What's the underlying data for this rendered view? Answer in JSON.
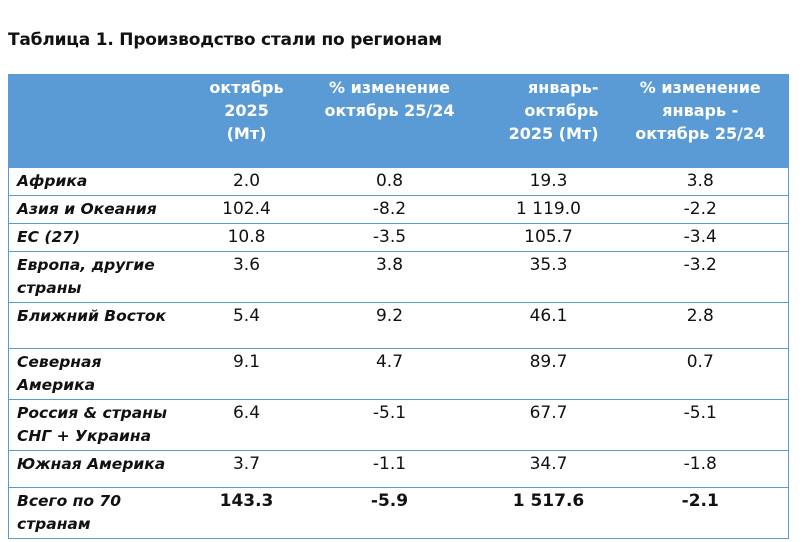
{
  "title": "Таблица 1. Производство стали по регионам",
  "table": {
    "headers": {
      "region": "",
      "oct_line1": "октябрь",
      "oct_line2": "2025 (Мт)",
      "oct_chg_line1": "% изменение",
      "oct_chg_line2": "октябрь 25/24",
      "ytd_line1": "январь-",
      "ytd_line2": "октябрь",
      "ytd_line3": "2025 (Мт)",
      "ytd_chg_line1": "% изменение",
      "ytd_chg_line2": "январь -",
      "ytd_chg_line3": "октябрь 25/24"
    },
    "rows": [
      {
        "region_l1": "Африка",
        "region_l2": "",
        "oct": "2.0",
        "oct_chg": "0.8",
        "ytd": "19.3",
        "ytd_chg": "3.8"
      },
      {
        "region_l1": "Азия и Океания",
        "region_l2": "",
        "oct": "102.4",
        "oct_chg": "-8.2",
        "ytd": "1 119.0",
        "ytd_chg": "-2.2"
      },
      {
        "region_l1": "ЕС (27)",
        "region_l2": "",
        "oct": "10.8",
        "oct_chg": "-3.5",
        "ytd": "105.7",
        "ytd_chg": "-3.4"
      },
      {
        "region_l1": "Европа, другие",
        "region_l2": "страны",
        "oct": "3.6",
        "oct_chg": "3.8",
        "ytd": "35.3",
        "ytd_chg": "-3.2"
      },
      {
        "region_l1": "Ближний Восток",
        "region_l2": "",
        "oct": "5.4",
        "oct_chg": "9.2",
        "ytd": "46.1",
        "ytd_chg": "2.8"
      },
      {
        "region_l1": "Северная",
        "region_l2": "Америка",
        "oct": "9.1",
        "oct_chg": "4.7",
        "ytd": "89.7",
        "ytd_chg": "0.7"
      },
      {
        "region_l1": "Россия & страны",
        "region_l2": "СНГ + Украина",
        "oct": "6.4",
        "oct_chg": "-5.1",
        "ytd": "67.7",
        "ytd_chg": "-5.1"
      },
      {
        "region_l1": "Южная Америка",
        "region_l2": "",
        "oct": "3.7",
        "oct_chg": "-1.1",
        "ytd": "34.7",
        "ytd_chg": "-1.8"
      }
    ],
    "total": {
      "region_l1": "Всего по 70",
      "region_l2": "странам",
      "oct": "143.3",
      "oct_chg": "-5.9",
      "ytd": "1 517.6",
      "ytd_chg": "-2.1"
    }
  }
}
